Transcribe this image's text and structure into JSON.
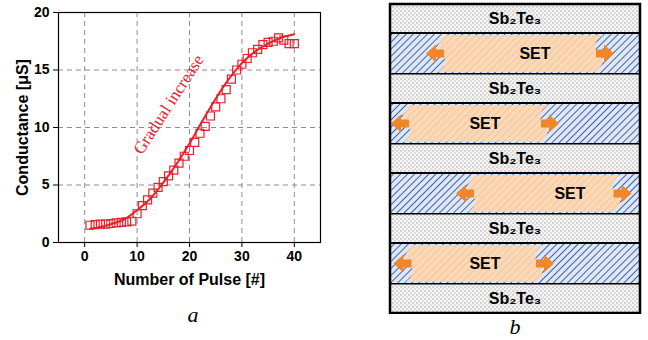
{
  "chart_data": {
    "type": "scatter",
    "x_label": "Number of Pulse [#]",
    "y_label": "Conductance [μS]",
    "xlim": [
      -5,
      45
    ],
    "xticks": [
      0,
      10,
      20,
      30,
      40
    ],
    "ylim": [
      0,
      20
    ],
    "yticks": [
      0,
      5,
      10,
      15,
      20
    ],
    "grid": true,
    "annotations": [
      {
        "text": "Gradual increase",
        "color": "#e8202a"
      }
    ],
    "series": [
      {
        "type": "scatter",
        "marker": "square",
        "color": "#e8202a",
        "x": [
          1,
          2,
          3,
          4,
          5,
          6,
          7,
          8,
          9,
          10,
          11,
          12,
          13,
          14,
          15,
          16,
          17,
          18,
          19,
          20,
          21,
          22,
          23,
          24,
          25,
          26,
          27,
          28,
          29,
          30,
          31,
          32,
          33,
          34,
          35,
          36,
          37,
          38,
          39,
          40
        ],
        "values": [
          1.5,
          1.55,
          1.6,
          1.6,
          1.65,
          1.7,
          1.75,
          1.8,
          1.85,
          2.5,
          3.2,
          3.7,
          4.3,
          4.8,
          5.3,
          5.8,
          6.3,
          6.9,
          7.5,
          8.0,
          8.7,
          9.5,
          10.1,
          11.0,
          11.8,
          12.5,
          13.3,
          14.2,
          15.0,
          15.5,
          16.0,
          16.5,
          16.8,
          17.2,
          17.4,
          17.5,
          17.8,
          17.6,
          17.3,
          17.3
        ]
      },
      {
        "type": "line",
        "line_style": "solid",
        "color": "#e8202a",
        "x": [
          1,
          2.5,
          5,
          7.5,
          10,
          12.5,
          15,
          17.5,
          20,
          22.5,
          25,
          27.5,
          30,
          32.5,
          35,
          37.5,
          40
        ],
        "values": [
          1.2,
          1.3,
          1.6,
          2.0,
          2.8,
          3.8,
          5.2,
          6.8,
          8.6,
          10.6,
          12.5,
          14.2,
          15.6,
          16.6,
          17.3,
          17.8,
          18.1
        ]
      }
    ]
  },
  "diagram": {
    "layers": [
      "Sb₂Te₃",
      "SET",
      "Sb₂Te₃",
      "SET",
      "Sb₂Te₃",
      "SET",
      "Sb₂Te₃",
      "SET",
      "Sb₂Te₃"
    ]
  },
  "panel_labels": [
    "a",
    "b"
  ]
}
